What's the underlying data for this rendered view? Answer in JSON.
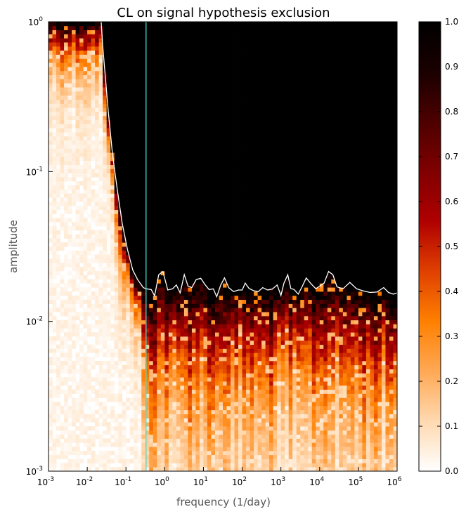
{
  "chart_data": {
    "type": "heatmap",
    "title": "CL on signal hypothesis exclusion",
    "xlabel": "frequency (1/day)",
    "ylabel": "amplitude",
    "x_scale": "log",
    "y_scale": "log",
    "xlim": [
      0.001,
      1000000
    ],
    "ylim": [
      0.001,
      1
    ],
    "x_ticks": [
      {
        "value": 0.001,
        "base": "10",
        "exp": "-3"
      },
      {
        "value": 0.01,
        "base": "10",
        "exp": "-2"
      },
      {
        "value": 0.1,
        "base": "10",
        "exp": "-1"
      },
      {
        "value": 1,
        "base": "10",
        "exp": "0"
      },
      {
        "value": 10,
        "base": "10",
        "exp": "1"
      },
      {
        "value": 100,
        "base": "10",
        "exp": "2"
      },
      {
        "value": 1000,
        "base": "10",
        "exp": "3"
      },
      {
        "value": 10000,
        "base": "10",
        "exp": "4"
      },
      {
        "value": 100000,
        "base": "10",
        "exp": "5"
      },
      {
        "value": 1000000,
        "base": "10",
        "exp": "6"
      }
    ],
    "y_ticks": [
      {
        "value": 0.001,
        "base": "10",
        "exp": "-3"
      },
      {
        "value": 0.01,
        "base": "10",
        "exp": "-2"
      },
      {
        "value": 0.1,
        "base": "10",
        "exp": "-1"
      },
      {
        "value": 1,
        "base": "10",
        "exp": "0"
      }
    ],
    "colorbar": {
      "range": [
        0.0,
        1.0
      ],
      "ticks": [
        "0.0",
        "0.1",
        "0.2",
        "0.3",
        "0.4",
        "0.5",
        "0.6",
        "0.7",
        "0.8",
        "0.9",
        "1.0"
      ],
      "colors": [
        "#ffffff",
        "#ffd9b0",
        "#ffa855",
        "#ff8000",
        "#e04000",
        "#b00000",
        "#800000",
        "#4d0000",
        "#1a0000",
        "#000000"
      ]
    },
    "vertical_line": {
      "x": 0.33,
      "color": "#40e0d0"
    },
    "contour_color": "#ffffff",
    "grid": false,
    "contour": {
      "description": "white exclusion contour, CL boundary",
      "points": [
        [
          0.0229,
          1.0
        ],
        [
          0.025,
          0.7
        ],
        [
          0.03,
          0.4
        ],
        [
          0.035,
          0.25
        ],
        [
          0.045,
          0.13
        ],
        [
          0.06,
          0.075
        ],
        [
          0.08,
          0.045
        ],
        [
          0.11,
          0.03
        ],
        [
          0.15,
          0.022
        ],
        [
          0.2,
          0.019
        ],
        [
          0.28,
          0.0168
        ],
        [
          0.33,
          0.0165
        ],
        [
          0.45,
          0.0163
        ],
        [
          0.55,
          0.0148
        ],
        [
          0.7,
          0.0205
        ],
        [
          0.9,
          0.0215
        ],
        [
          1.2,
          0.0162
        ],
        [
          1.6,
          0.0165
        ],
        [
          2.0,
          0.0175
        ],
        [
          2.5,
          0.0155
        ],
        [
          3.2,
          0.0205
        ],
        [
          4.0,
          0.0172
        ],
        [
          5.0,
          0.0168
        ],
        [
          6.5,
          0.019
        ],
        [
          8.5,
          0.0194
        ],
        [
          11,
          0.0176
        ],
        [
          14,
          0.0163
        ],
        [
          18,
          0.0165
        ],
        [
          22,
          0.0146
        ],
        [
          28,
          0.0175
        ],
        [
          35,
          0.0195
        ],
        [
          45,
          0.0168
        ],
        [
          60,
          0.0158
        ],
        [
          80,
          0.0162
        ],
        [
          100,
          0.0162
        ],
        [
          120,
          0.018
        ],
        [
          150,
          0.0166
        ],
        [
          200,
          0.016
        ],
        [
          260,
          0.0158
        ],
        [
          340,
          0.0168
        ],
        [
          450,
          0.0162
        ],
        [
          600,
          0.0164
        ],
        [
          800,
          0.0175
        ],
        [
          1000,
          0.0149
        ],
        [
          1200,
          0.018
        ],
        [
          1500,
          0.0205
        ],
        [
          1800,
          0.0166
        ],
        [
          2200,
          0.0163
        ],
        [
          2800,
          0.0152
        ],
        [
          3500,
          0.017
        ],
        [
          4500,
          0.0195
        ],
        [
          6000,
          0.0178
        ],
        [
          8000,
          0.0165
        ],
        [
          10000,
          0.0172
        ],
        [
          13000,
          0.018
        ],
        [
          17000,
          0.0215
        ],
        [
          22000,
          0.0205
        ],
        [
          28000,
          0.017
        ],
        [
          40000,
          0.0165
        ],
        [
          60000,
          0.0182
        ],
        [
          90000,
          0.0165
        ],
        [
          130000,
          0.016
        ],
        [
          200000,
          0.0156
        ],
        [
          300000,
          0.0157
        ],
        [
          450000,
          0.0168
        ],
        [
          600000,
          0.0156
        ],
        [
          800000,
          0.0152
        ],
        [
          1000000,
          0.0155
        ]
      ]
    }
  }
}
